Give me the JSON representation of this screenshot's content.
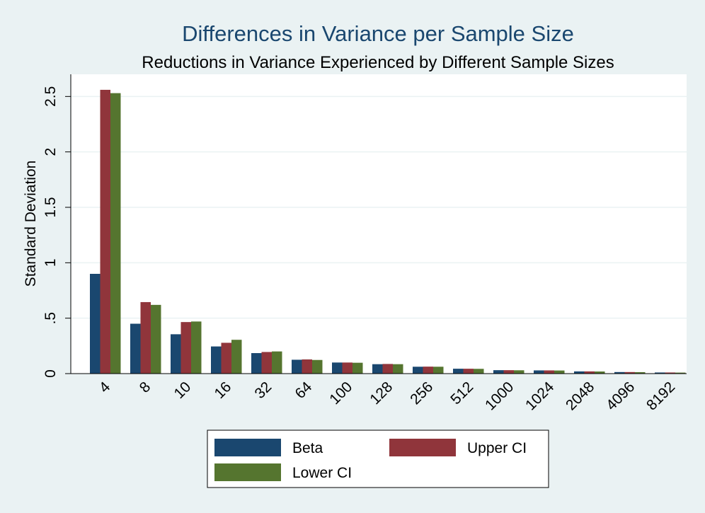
{
  "chart_data": {
    "type": "bar",
    "title": "Differences in Variance per Sample Size",
    "subtitle": "Reductions in Variance Experienced by Different Sample Sizes",
    "xlabel": "",
    "ylabel": "Standard Deviation",
    "ylim": [
      0,
      2.7
    ],
    "yticks": [
      0,
      0.5,
      1,
      1.5,
      2,
      2.5
    ],
    "ytick_labels": [
      "0",
      ".5",
      "1",
      "1.5",
      "2",
      "2.5"
    ],
    "grid": true,
    "legend_position": "bottom",
    "categories": [
      "4",
      "8",
      "10",
      "16",
      "32",
      "64",
      "100",
      "128",
      "256",
      "512",
      "1000",
      "1024",
      "2048",
      "4096",
      "8192"
    ],
    "series": [
      {
        "name": "Beta",
        "color": "#1a476f",
        "values": [
          0.9,
          0.45,
          0.355,
          0.245,
          0.185,
          0.125,
          0.1,
          0.085,
          0.062,
          0.044,
          0.031,
          0.029,
          0.02,
          0.014,
          0.01
        ]
      },
      {
        "name": "Upper CI",
        "color": "#90353b",
        "values": [
          2.56,
          0.645,
          0.465,
          0.278,
          0.195,
          0.128,
          0.1,
          0.087,
          0.063,
          0.044,
          0.031,
          0.029,
          0.02,
          0.014,
          0.01
        ]
      },
      {
        "name": "Lower CI",
        "color": "#55752f",
        "values": [
          2.53,
          0.62,
          0.47,
          0.305,
          0.2,
          0.123,
          0.098,
          0.085,
          0.062,
          0.043,
          0.03,
          0.028,
          0.019,
          0.013,
          0.009
        ]
      }
    ]
  }
}
